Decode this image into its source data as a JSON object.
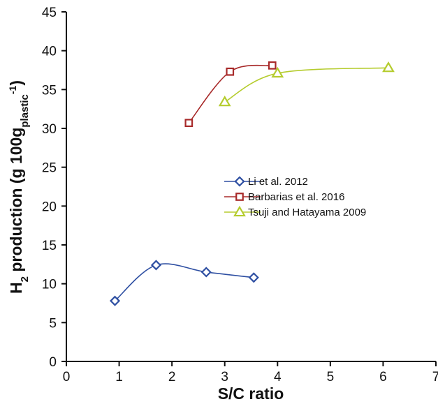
{
  "chart_data": {
    "type": "line",
    "xlabel": "S/C ratio",
    "ylabel": {
      "prefix": "H",
      "prefix_sub": "2",
      "mid": " production (g 100g",
      "sub": "plastic",
      "sup": "-1",
      "suffix": ")"
    },
    "xlim": [
      0,
      7
    ],
    "ylim": [
      0,
      45
    ],
    "xticks": [
      "0",
      "1",
      "2",
      "3",
      "4",
      "5",
      "6",
      "7"
    ],
    "yticks": [
      "0",
      "5",
      "10",
      "15",
      "20",
      "25",
      "30",
      "35",
      "40",
      "45"
    ],
    "grid": false,
    "legend_position": "center-right",
    "series": [
      {
        "name": "Li et al. 2012",
        "marker": "diamond",
        "color": "#2e4fa2",
        "x": [
          0.92,
          1.7,
          2.65,
          3.55
        ],
        "y": [
          7.8,
          12.4,
          11.5,
          10.8
        ]
      },
      {
        "name": "Barbarias et al. 2016",
        "marker": "square",
        "color": "#a82a2a",
        "x": [
          2.32,
          3.1,
          3.9
        ],
        "y": [
          30.7,
          37.3,
          38.1
        ]
      },
      {
        "name": "Tsuji and Hatayama 2009",
        "marker": "triangle",
        "color": "#b5cc2e",
        "x": [
          3.0,
          4.0,
          6.1
        ],
        "y": [
          33.4,
          37.1,
          37.8
        ]
      }
    ]
  }
}
